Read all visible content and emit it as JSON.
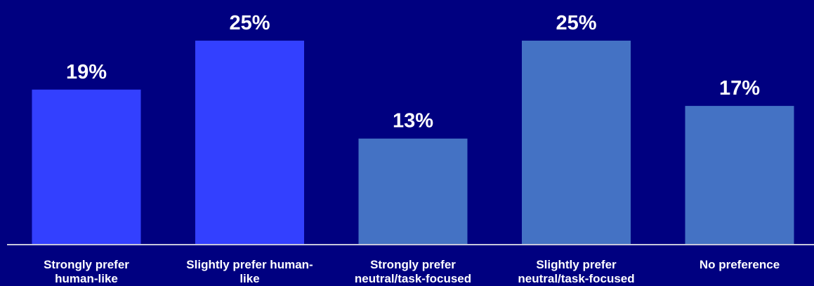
{
  "chart_data": {
    "type": "bar",
    "categories": [
      [
        "Strongly prefer",
        "human-like"
      ],
      [
        "Slightly prefer human-",
        "like"
      ],
      [
        "Strongly prefer",
        "neutral/task-focused"
      ],
      [
        "Slightly prefer",
        "neutral/task-focused"
      ],
      [
        "No preference"
      ]
    ],
    "values": [
      19,
      25,
      13,
      25,
      17
    ],
    "value_labels": [
      "19%",
      "25%",
      "13%",
      "25%",
      "17%"
    ],
    "bar_colors": [
      "#3340ff",
      "#3340ff",
      "#4472c4",
      "#4472c4",
      "#4472c4"
    ],
    "ylim": [
      0,
      25
    ],
    "grid": false,
    "legend": "none",
    "background": "#000080",
    "axis_color": "#c8c8dc"
  }
}
